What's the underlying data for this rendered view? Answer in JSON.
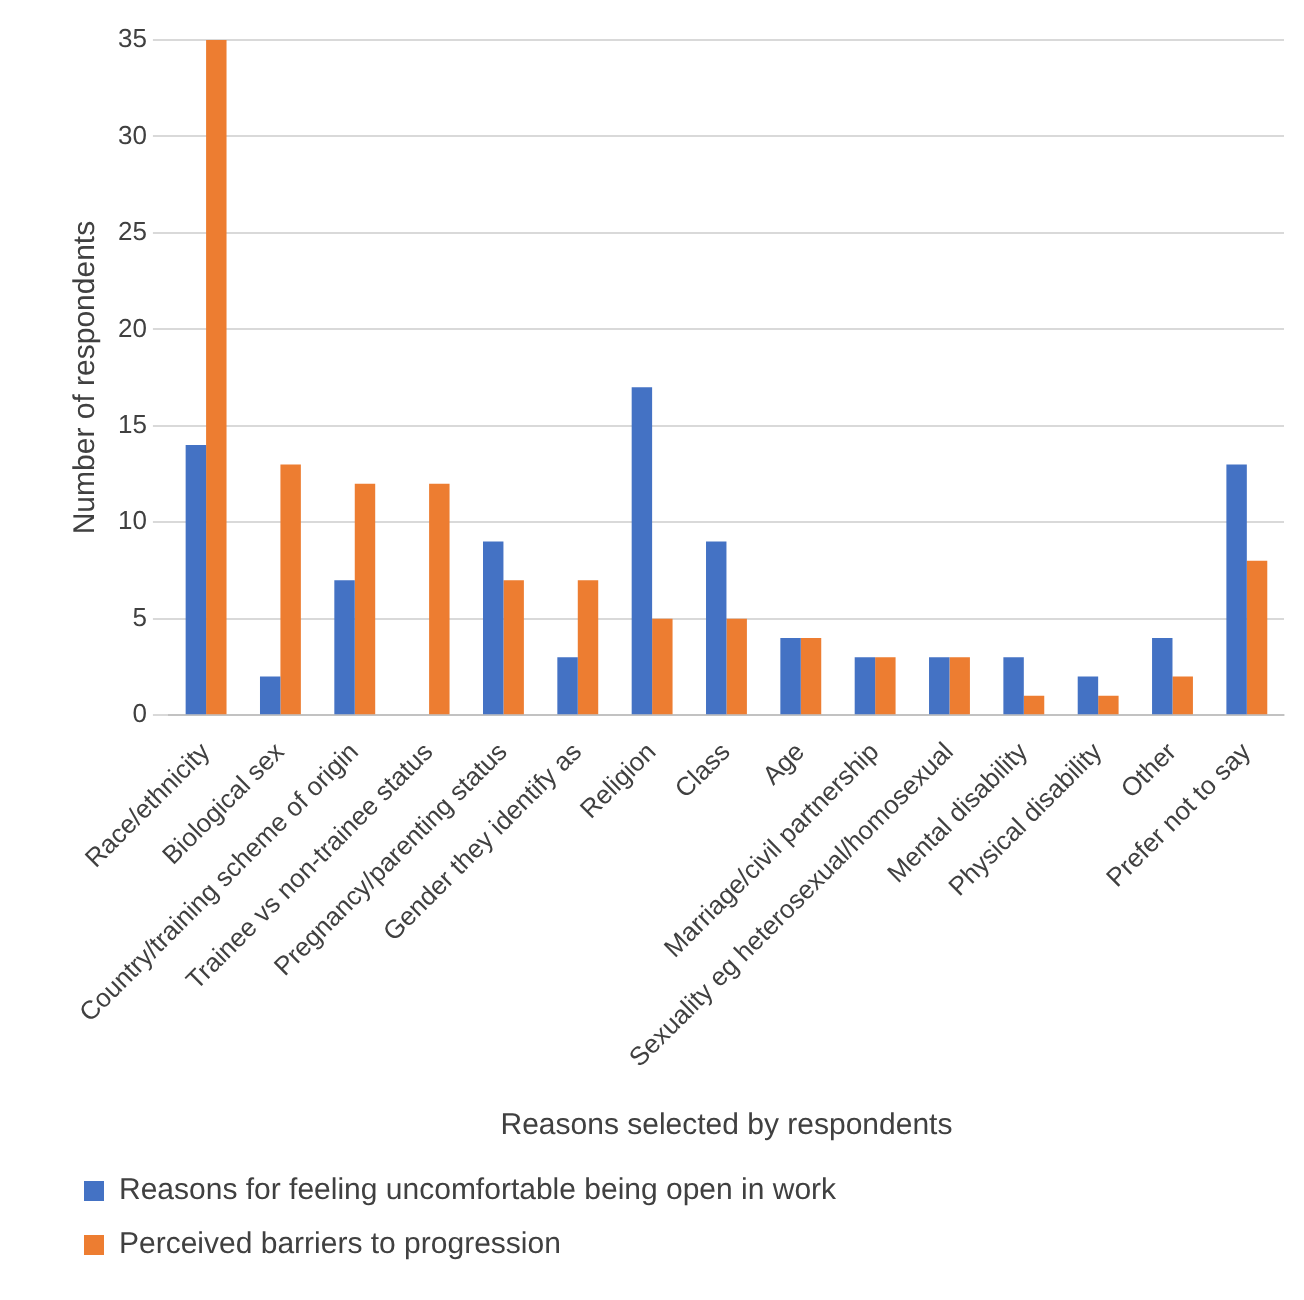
{
  "chart_data": {
    "type": "bar",
    "categories": [
      "Race/ethnicity",
      "Biological sex",
      "Country/training scheme of origin",
      "Trainee vs non-trainee status",
      "Pregnancy/parenting status",
      "Gender they identify as",
      "Religion",
      "Class",
      "Age",
      "Marriage/civil partnership",
      "Sexuality eg heterosexual/homosexual",
      "Mental disability",
      "Physical disability",
      "Other",
      "Prefer not to say"
    ],
    "series": [
      {
        "name": "Reasons for feeling uncomfortable being open in work",
        "color": "#4472c4",
        "values": [
          14,
          2,
          7,
          0,
          9,
          3,
          17,
          9,
          4,
          3,
          3,
          3,
          2,
          4,
          13
        ]
      },
      {
        "name": "Perceived barriers to progression",
        "color": "#ed7d31",
        "values": [
          35,
          13,
          12,
          12,
          7,
          7,
          5,
          5,
          4,
          3,
          3,
          1,
          1,
          2,
          8
        ]
      }
    ],
    "xlabel": "Reasons selected by respondents",
    "ylabel": "Number of respondents",
    "ylim": [
      0,
      35
    ],
    "yticks": [
      0,
      5,
      10,
      15,
      20,
      25,
      30,
      35
    ],
    "grid": "y",
    "legend": "bottom"
  }
}
